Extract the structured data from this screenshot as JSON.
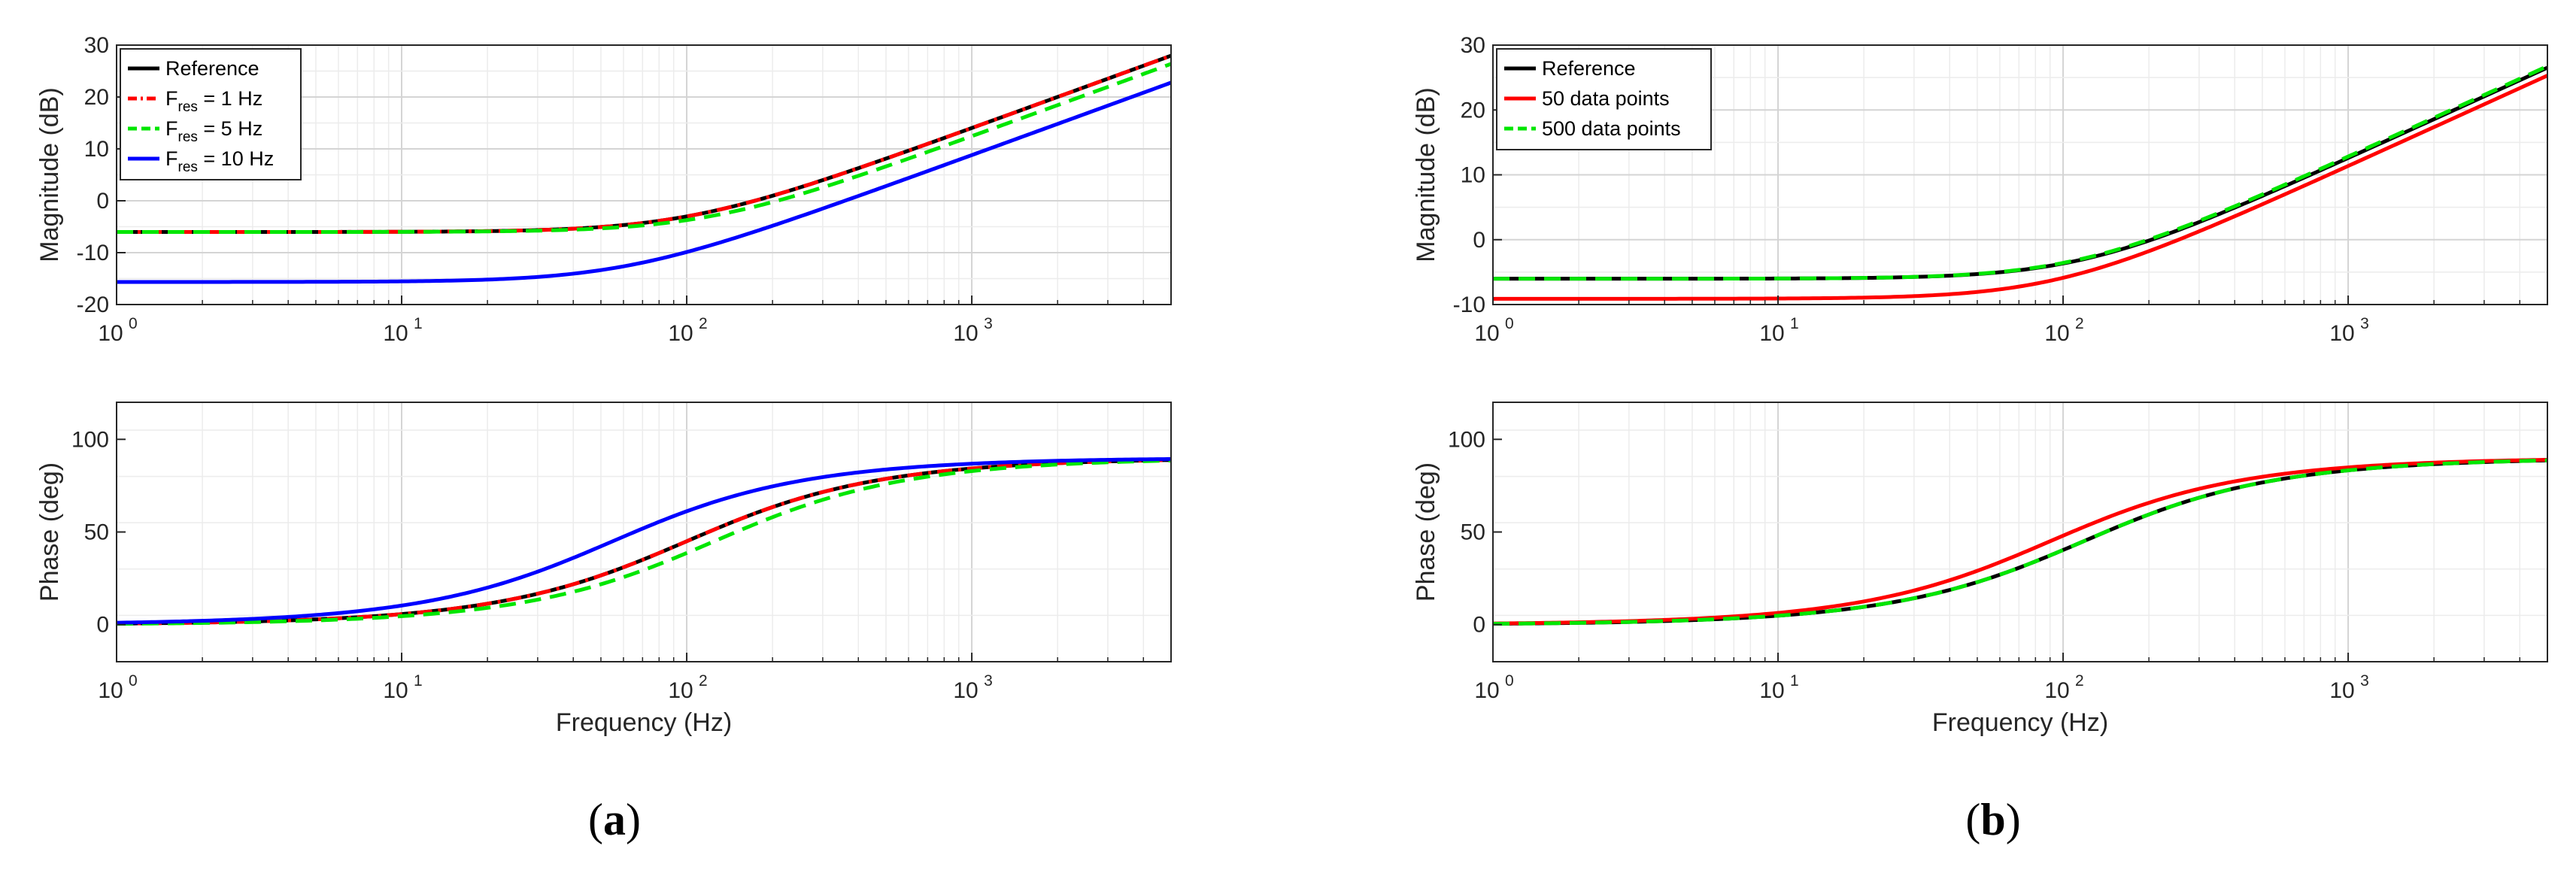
{
  "chart_data": [
    {
      "id": "a-mag",
      "type": "line",
      "panel": "a",
      "xscale": "log",
      "xlim": [
        1,
        5000
      ],
      "ylim": [
        -20,
        30
      ],
      "yticks": [
        -20,
        -10,
        0,
        10,
        20,
        30
      ],
      "xlabel": "",
      "ylabel": "Magnitude (dB)",
      "legend": {
        "placement": "top-left"
      },
      "series": [
        {
          "name": "Reference",
          "base": "Reference",
          "subscript": "",
          "tail": "",
          "color": "#000000",
          "dash": "solid",
          "k": 0.5,
          "wc": 100,
          "mode": "mag"
        },
        {
          "name": "Fres = 1 Hz",
          "base": "F",
          "subscript": "res",
          "tail": " = 1 Hz",
          "color": "#ff0000",
          "dash": "dashdot",
          "k": 0.5,
          "wc": 100,
          "mode": "mag"
        },
        {
          "name": "Fres = 5 Hz",
          "base": "F",
          "subscript": "res",
          "tail": " = 5 Hz",
          "color": "#00e600",
          "dash": "dashed",
          "k": 0.5,
          "wc": 120,
          "mode": "mag"
        },
        {
          "name": "Fres = 10 Hz",
          "base": "F",
          "subscript": "res",
          "tail": " = 10 Hz",
          "color": "#0000ff",
          "dash": "solid",
          "k": 0.165,
          "wc": 60,
          "mode": "mag"
        }
      ]
    },
    {
      "id": "a-phase",
      "type": "line",
      "panel": "a",
      "xscale": "log",
      "xlim": [
        1,
        5000
      ],
      "ylim": [
        -20,
        120
      ],
      "yticks": [
        0,
        50,
        100
      ],
      "xlabel": "Frequency (Hz)",
      "ylabel": "Phase (deg)",
      "series": [
        {
          "name": "Reference",
          "color": "#000000",
          "dash": "solid",
          "wc": 100,
          "mode": "phase"
        },
        {
          "name": "Fres = 1 Hz",
          "color": "#ff0000",
          "dash": "dashdot",
          "wc": 100,
          "mode": "phase"
        },
        {
          "name": "Fres = 5 Hz",
          "color": "#00e600",
          "dash": "dashed",
          "wc": 125,
          "mode": "phase"
        },
        {
          "name": "Fres = 10 Hz",
          "color": "#0000ff",
          "dash": "solid",
          "wc": 55,
          "mode": "phase"
        }
      ]
    },
    {
      "id": "b-mag",
      "type": "line",
      "panel": "b",
      "xscale": "log",
      "xlim": [
        1,
        5000
      ],
      "ylim": [
        -10,
        30
      ],
      "yticks": [
        -10,
        0,
        10,
        20,
        30
      ],
      "xlabel": "",
      "ylabel": "Magnitude (dB)",
      "legend": {
        "placement": "top-left"
      },
      "series": [
        {
          "name": "Reference",
          "base": "Reference",
          "subscript": "",
          "tail": "",
          "color": "#000000",
          "dash": "solid",
          "k": 0.5,
          "wc": 118,
          "mode": "mag"
        },
        {
          "name": "50 data points",
          "base": "50 data points",
          "subscript": "",
          "tail": "",
          "color": "#ff0000",
          "dash": "solid",
          "k": 0.35,
          "wc": 95,
          "mode": "mag"
        },
        {
          "name": "500 data points",
          "base": "500 data points",
          "subscript": "",
          "tail": "",
          "color": "#00e600",
          "dash": "dashed",
          "k": 0.5,
          "wc": 115,
          "mode": "mag"
        }
      ]
    },
    {
      "id": "b-phase",
      "type": "line",
      "panel": "b",
      "xscale": "log",
      "xlim": [
        1,
        5000
      ],
      "ylim": [
        -20,
        120
      ],
      "yticks": [
        0,
        50,
        100
      ],
      "xlabel": "Frequency (Hz)",
      "ylabel": "Phase (deg)",
      "series": [
        {
          "name": "Reference",
          "color": "#000000",
          "dash": "solid",
          "wc": 118,
          "mode": "phase"
        },
        {
          "name": "50 data points",
          "color": "#ff0000",
          "dash": "solid",
          "wc": 90,
          "mode": "phase"
        },
        {
          "name": "500 data points",
          "color": "#00e600",
          "dash": "dashed",
          "wc": 118,
          "mode": "phase"
        }
      ]
    }
  ],
  "panel_labels": {
    "a": "a",
    "b": "b"
  }
}
